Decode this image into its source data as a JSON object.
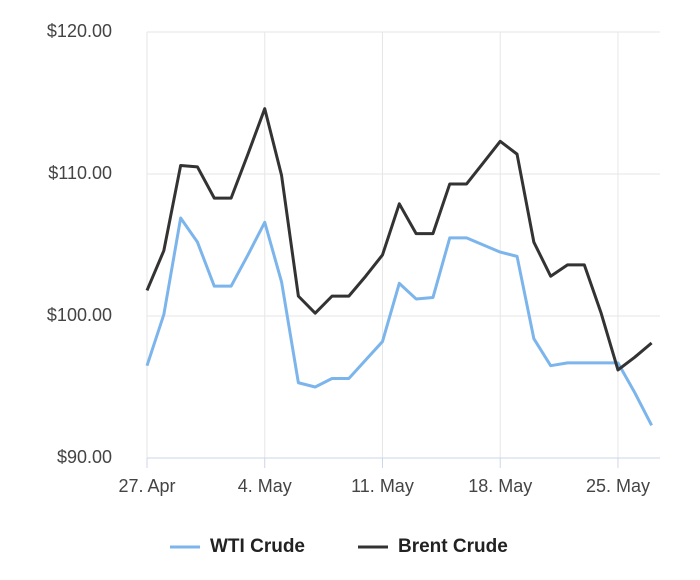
{
  "chart_data": {
    "type": "line",
    "categories": [
      "27. Apr",
      null,
      null,
      null,
      null,
      null,
      null,
      "4. May",
      null,
      null,
      null,
      null,
      null,
      null,
      "11. May",
      null,
      null,
      null,
      null,
      null,
      null,
      "18. May",
      null,
      null,
      null,
      null,
      null,
      null,
      "25. May",
      null,
      null
    ],
    "series": [
      {
        "name": "WTI Crude",
        "color": "#7cb5ec",
        "values": [
          96.5,
          100.1,
          106.9,
          105.2,
          102.1,
          102.1,
          104.3,
          106.6,
          102.4,
          95.3,
          95.0,
          95.6,
          95.6,
          96.9,
          98.2,
          102.3,
          101.2,
          101.3,
          105.5,
          105.5,
          105.0,
          104.5,
          104.2,
          98.4,
          96.5,
          96.7,
          96.7,
          96.7,
          96.7,
          94.6,
          92.3
        ]
      },
      {
        "name": "Brent Crude",
        "color": "#333333",
        "values": [
          101.8,
          104.6,
          110.6,
          110.5,
          108.3,
          108.3,
          111.4,
          114.6,
          109.9,
          101.4,
          100.2,
          101.4,
          101.4,
          102.8,
          104.3,
          107.9,
          105.8,
          105.8,
          109.3,
          109.3,
          110.8,
          112.3,
          111.4,
          105.2,
          102.8,
          103.6,
          103.6,
          100.2,
          96.2,
          97.1,
          98.1
        ]
      }
    ],
    "ylim": [
      90,
      120
    ],
    "yticks": [
      {
        "value": 90,
        "label": "$90.00"
      },
      {
        "value": 100,
        "label": "$100.00"
      },
      {
        "value": 110,
        "label": "$110.00"
      },
      {
        "value": 120,
        "label": "$120.00"
      }
    ],
    "grid": true
  }
}
